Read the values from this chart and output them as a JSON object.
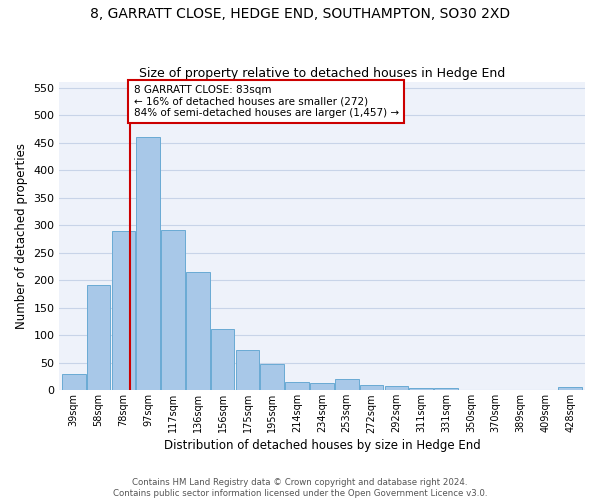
{
  "title": "8, GARRATT CLOSE, HEDGE END, SOUTHAMPTON, SO30 2XD",
  "subtitle": "Size of property relative to detached houses in Hedge End",
  "xlabel": "Distribution of detached houses by size in Hedge End",
  "ylabel": "Number of detached properties",
  "categories": [
    "39sqm",
    "58sqm",
    "78sqm",
    "97sqm",
    "117sqm",
    "136sqm",
    "156sqm",
    "175sqm",
    "195sqm",
    "214sqm",
    "234sqm",
    "253sqm",
    "272sqm",
    "292sqm",
    "311sqm",
    "331sqm",
    "350sqm",
    "370sqm",
    "389sqm",
    "409sqm",
    "428sqm"
  ],
  "values": [
    30,
    192,
    290,
    460,
    292,
    214,
    112,
    74,
    47,
    15,
    14,
    20,
    10,
    8,
    5,
    5,
    0,
    0,
    0,
    0,
    6
  ],
  "bar_color": "#a8c8e8",
  "bar_edge_color": "#6aaad4",
  "annotation_text_line1": "8 GARRATT CLOSE: 83sqm",
  "annotation_text_line2": "← 16% of detached houses are smaller (272)",
  "annotation_text_line3": "84% of semi-detached houses are larger (1,457) →",
  "vline_color": "#cc0000",
  "ylim": [
    0,
    560
  ],
  "yticks": [
    0,
    50,
    100,
    150,
    200,
    250,
    300,
    350,
    400,
    450,
    500,
    550
  ],
  "grid_color": "#c8d4e8",
  "background_color": "#eef2fa",
  "footer_line1": "Contains HM Land Registry data © Crown copyright and database right 2024.",
  "footer_line2": "Contains public sector information licensed under the Open Government Licence v3.0."
}
